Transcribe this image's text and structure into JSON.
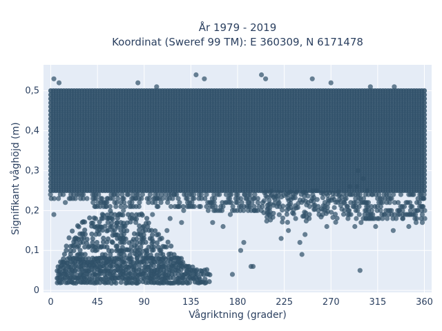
{
  "chart_data": {
    "type": "scatter",
    "title_line1": "År 1979 - 2019",
    "title_line2": "Koordinat (Sweref 99 TM): E 360309, N 6171478",
    "xlabel": "Vågriktning (grader)",
    "ylabel": "Signifikant våghöjd (m)",
    "xlim": [
      -7,
      367
    ],
    "ylim": [
      -0.005,
      0.565
    ],
    "x_ticks": [
      0,
      45,
      90,
      135,
      180,
      225,
      270,
      315,
      360
    ],
    "x_tick_labels": [
      "0",
      "45",
      "90",
      "135",
      "180",
      "225",
      "270",
      "315",
      "360"
    ],
    "y_ticks": [
      0,
      0.1,
      0.2,
      0.3,
      0.4,
      0.5
    ],
    "y_tick_labels": [
      "0",
      "0,1",
      "0,2",
      "0,3",
      "0,4",
      "0,5"
    ],
    "grid": true,
    "legend": "none",
    "marker_color": "#2f5068",
    "plot_bg": "#e5ecf6",
    "dense_band": {
      "x_range": [
        0,
        360
      ],
      "y_range": [
        0.25,
        0.5
      ]
    },
    "points": [
      [
        3,
        0.53
      ],
      [
        8,
        0.52
      ],
      [
        84,
        0.52
      ],
      [
        102,
        0.51
      ],
      [
        140,
        0.54
      ],
      [
        148,
        0.53
      ],
      [
        203,
        0.54
      ],
      [
        207,
        0.53
      ],
      [
        252,
        0.53
      ],
      [
        270,
        0.52
      ],
      [
        308,
        0.51
      ],
      [
        331,
        0.51
      ],
      [
        3,
        0.19
      ],
      [
        14,
        0.22
      ],
      [
        22,
        0.24
      ],
      [
        45,
        0.21
      ],
      [
        50,
        0.18
      ],
      [
        70,
        0.2
      ],
      [
        82,
        0.17
      ],
      [
        98,
        0.19
      ],
      [
        115,
        0.18
      ],
      [
        128,
        0.2
      ],
      [
        143,
        0.21
      ],
      [
        156,
        0.17
      ],
      [
        166,
        0.16
      ],
      [
        173,
        0.19
      ],
      [
        196,
        0.2
      ],
      [
        210,
        0.19
      ],
      [
        222,
        0.13
      ],
      [
        229,
        0.15
      ],
      [
        236,
        0.18
      ],
      [
        245,
        0.14
      ],
      [
        262,
        0.19
      ],
      [
        266,
        0.16
      ],
      [
        283,
        0.2
      ],
      [
        293,
        0.16
      ],
      [
        299,
        0.17
      ],
      [
        306,
        0.18
      ],
      [
        313,
        0.16
      ],
      [
        322,
        0.19
      ],
      [
        330,
        0.15
      ],
      [
        339,
        0.18
      ],
      [
        345,
        0.16
      ],
      [
        352,
        0.17
      ],
      [
        358,
        0.17
      ],
      [
        359,
        0.23
      ],
      [
        240,
        0.12
      ],
      [
        242,
        0.09
      ],
      [
        183,
        0.1
      ],
      [
        186,
        0.12
      ],
      [
        193,
        0.06
      ],
      [
        195,
        0.06
      ],
      [
        175,
        0.04
      ],
      [
        298,
        0.05
      ],
      [
        358,
        0.21
      ],
      [
        358,
        0.19
      ],
      [
        347,
        0.21
      ],
      [
        336,
        0.2
      ],
      [
        318,
        0.22
      ],
      [
        295,
        0.26
      ],
      [
        296,
        0.3
      ],
      [
        301,
        0.28
      ],
      [
        305,
        0.25
      ],
      [
        288,
        0.26
      ],
      [
        278,
        0.24
      ],
      [
        256,
        0.25
      ],
      [
        248,
        0.22
      ],
      [
        218,
        0.21
      ],
      [
        190,
        0.22
      ],
      [
        161,
        0.2
      ],
      [
        126,
        0.17
      ],
      [
        112,
        0.15
      ]
    ]
  }
}
